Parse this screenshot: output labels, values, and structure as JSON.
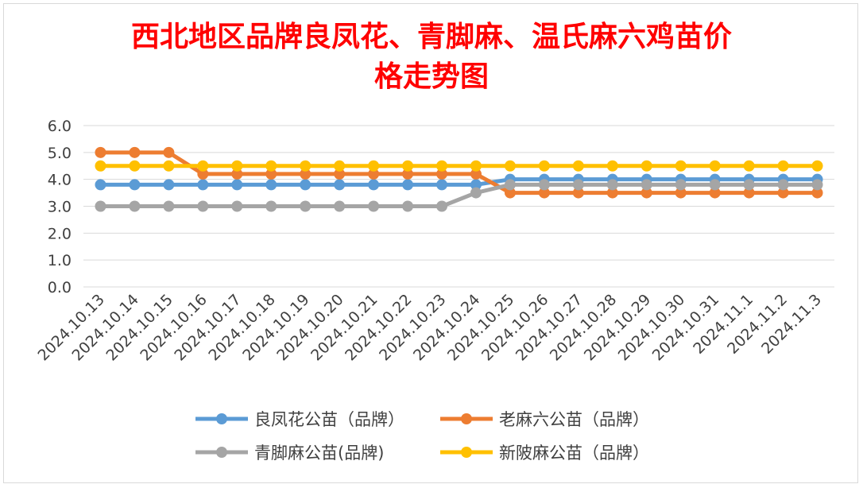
{
  "chart_data": {
    "type": "line",
    "title_line1": "西北地区品牌良凤花、青脚麻、温氏麻六鸡苗价",
    "title_line2": "格走势图",
    "categories": [
      "2024.10.13",
      "2024.10.14",
      "2024.10.15",
      "2024.10.16",
      "2024.10.17",
      "2024.10.18",
      "2024.10.19",
      "2024.10.20",
      "2024.10.21",
      "2024.10.22",
      "2024.10.23",
      "2024.10.24",
      "2024.10.25",
      "2024.10.26",
      "2024.10.27",
      "2024.10.28",
      "2024.10.29",
      "2024.10.30",
      "2024.10.31",
      "2024.11.1",
      "2024.11.2",
      "2024.11.3"
    ],
    "ylim": [
      0,
      6
    ],
    "yticks": [
      "0.0",
      "1.0",
      "2.0",
      "3.0",
      "4.0",
      "5.0",
      "6.0"
    ],
    "grid": true,
    "legend_position": "bottom",
    "series": [
      {
        "name": "良凤花公苗（品牌）",
        "color": "#5b9bd5",
        "values": [
          3.8,
          3.8,
          3.8,
          3.8,
          3.8,
          3.8,
          3.8,
          3.8,
          3.8,
          3.8,
          3.8,
          3.8,
          4.0,
          4.0,
          4.0,
          4.0,
          4.0,
          4.0,
          4.0,
          4.0,
          4.0,
          4.0
        ]
      },
      {
        "name": "老麻六公苗（品牌）",
        "color": "#ed7d31",
        "values": [
          5.0,
          5.0,
          5.0,
          4.2,
          4.2,
          4.2,
          4.2,
          4.2,
          4.2,
          4.2,
          4.2,
          4.2,
          3.5,
          3.5,
          3.5,
          3.5,
          3.5,
          3.5,
          3.5,
          3.5,
          3.5,
          3.5
        ]
      },
      {
        "name": "青脚麻公苗(品牌)",
        "color": "#a5a5a5",
        "values": [
          3.0,
          3.0,
          3.0,
          3.0,
          3.0,
          3.0,
          3.0,
          3.0,
          3.0,
          3.0,
          3.0,
          3.5,
          3.8,
          3.8,
          3.8,
          3.8,
          3.8,
          3.8,
          3.8,
          3.8,
          3.8,
          3.8
        ]
      },
      {
        "name": "新陂麻公苗（品牌）",
        "color": "#ffc000",
        "values": [
          4.5,
          4.5,
          4.5,
          4.5,
          4.5,
          4.5,
          4.5,
          4.5,
          4.5,
          4.5,
          4.5,
          4.5,
          4.5,
          4.5,
          4.5,
          4.5,
          4.5,
          4.5,
          4.5,
          4.5,
          4.5,
          4.5
        ]
      }
    ]
  }
}
